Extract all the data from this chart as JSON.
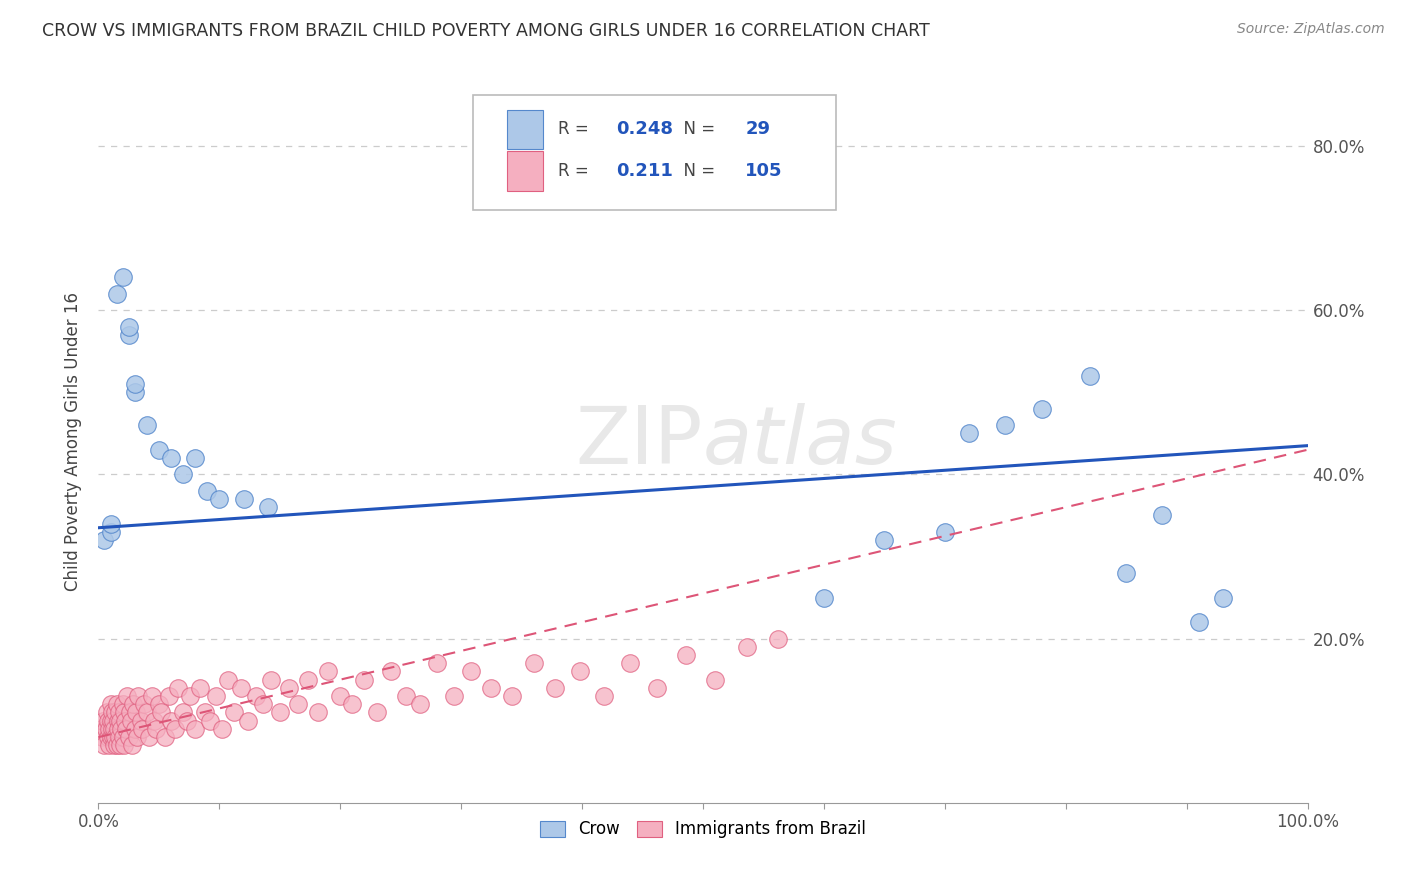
{
  "title": "CROW VS IMMIGRANTS FROM BRAZIL CHILD POVERTY AMONG GIRLS UNDER 16 CORRELATION CHART",
  "source": "Source: ZipAtlas.com",
  "ylabel": "Child Poverty Among Girls Under 16",
  "xlim": [
    0,
    1.0
  ],
  "ylim": [
    0,
    0.88
  ],
  "xticks": [
    0.0,
    0.1,
    0.2,
    0.3,
    0.4,
    0.5,
    0.6,
    0.7,
    0.8,
    0.9,
    1.0
  ],
  "xtick_edge_labels": {
    "0": "0.0%",
    "10": "100.0%"
  },
  "ytick_labels": [
    "20.0%",
    "40.0%",
    "60.0%",
    "80.0%"
  ],
  "ytick_vals": [
    0.2,
    0.4,
    0.6,
    0.8
  ],
  "legend_R1": "0.248",
  "legend_N1": "29",
  "legend_R2": "0.211",
  "legend_N2": "105",
  "blue_fill": "#adc8e8",
  "pink_fill": "#f5afc0",
  "blue_edge": "#5588cc",
  "pink_edge": "#e06080",
  "trend_blue_color": "#2255bb",
  "trend_pink_color": "#dd5577",
  "watermark": "ZIPatlas",
  "crow_x": [
    0.005,
    0.01,
    0.01,
    0.015,
    0.02,
    0.025,
    0.025,
    0.03,
    0.03,
    0.04,
    0.05,
    0.06,
    0.07,
    0.08,
    0.09,
    0.1,
    0.12,
    0.14,
    0.6,
    0.65,
    0.7,
    0.72,
    0.75,
    0.78,
    0.82,
    0.85,
    0.88,
    0.91,
    0.93
  ],
  "crow_y": [
    0.32,
    0.33,
    0.34,
    0.62,
    0.64,
    0.57,
    0.58,
    0.5,
    0.51,
    0.46,
    0.43,
    0.42,
    0.4,
    0.42,
    0.38,
    0.37,
    0.37,
    0.36,
    0.25,
    0.32,
    0.33,
    0.45,
    0.46,
    0.48,
    0.52,
    0.28,
    0.35,
    0.22,
    0.25
  ],
  "brazil_x": [
    0.002,
    0.003,
    0.004,
    0.005,
    0.006,
    0.007,
    0.008,
    0.008,
    0.009,
    0.009,
    0.01,
    0.01,
    0.01,
    0.011,
    0.011,
    0.012,
    0.012,
    0.013,
    0.013,
    0.014,
    0.014,
    0.015,
    0.015,
    0.016,
    0.016,
    0.017,
    0.017,
    0.018,
    0.018,
    0.019,
    0.02,
    0.02,
    0.021,
    0.021,
    0.022,
    0.023,
    0.024,
    0.025,
    0.026,
    0.027,
    0.028,
    0.029,
    0.03,
    0.031,
    0.032,
    0.033,
    0.035,
    0.036,
    0.038,
    0.04,
    0.042,
    0.044,
    0.046,
    0.048,
    0.05,
    0.052,
    0.055,
    0.058,
    0.06,
    0.063,
    0.066,
    0.07,
    0.073,
    0.076,
    0.08,
    0.084,
    0.088,
    0.092,
    0.097,
    0.102,
    0.107,
    0.112,
    0.118,
    0.124,
    0.13,
    0.136,
    0.143,
    0.15,
    0.158,
    0.165,
    0.173,
    0.182,
    0.19,
    0.2,
    0.21,
    0.22,
    0.23,
    0.242,
    0.254,
    0.266,
    0.28,
    0.294,
    0.308,
    0.325,
    0.342,
    0.36,
    0.378,
    0.398,
    0.418,
    0.44,
    0.462,
    0.486,
    0.51,
    0.536,
    0.562
  ],
  "brazil_y": [
    0.09,
    0.08,
    0.1,
    0.07,
    0.09,
    0.11,
    0.08,
    0.1,
    0.07,
    0.09,
    0.1,
    0.08,
    0.12,
    0.09,
    0.11,
    0.08,
    0.1,
    0.07,
    0.09,
    0.11,
    0.08,
    0.12,
    0.07,
    0.1,
    0.09,
    0.08,
    0.11,
    0.07,
    0.1,
    0.09,
    0.12,
    0.08,
    0.11,
    0.07,
    0.1,
    0.09,
    0.13,
    0.08,
    0.11,
    0.1,
    0.07,
    0.12,
    0.09,
    0.11,
    0.08,
    0.13,
    0.1,
    0.09,
    0.12,
    0.11,
    0.08,
    0.13,
    0.1,
    0.09,
    0.12,
    0.11,
    0.08,
    0.13,
    0.1,
    0.09,
    0.14,
    0.11,
    0.1,
    0.13,
    0.09,
    0.14,
    0.11,
    0.1,
    0.13,
    0.09,
    0.15,
    0.11,
    0.14,
    0.1,
    0.13,
    0.12,
    0.15,
    0.11,
    0.14,
    0.12,
    0.15,
    0.11,
    0.16,
    0.13,
    0.12,
    0.15,
    0.11,
    0.16,
    0.13,
    0.12,
    0.17,
    0.13,
    0.16,
    0.14,
    0.13,
    0.17,
    0.14,
    0.16,
    0.13,
    0.17,
    0.14,
    0.18,
    0.15,
    0.19,
    0.2
  ],
  "blue_trend_x0": 0.0,
  "blue_trend_y0": 0.335,
  "blue_trend_x1": 1.0,
  "blue_trend_y1": 0.435,
  "pink_trend_x0": 0.0,
  "pink_trend_y0": 0.08,
  "pink_trend_x1": 1.0,
  "pink_trend_y1": 0.43
}
